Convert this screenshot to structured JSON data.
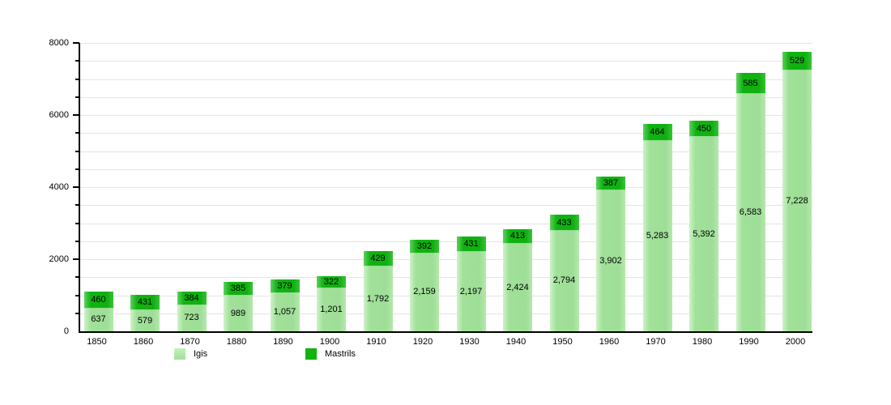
{
  "chart_data": {
    "type": "bar",
    "stacked": true,
    "title": "",
    "categories": [
      "1850",
      "1860",
      "1870",
      "1880",
      "1890",
      "1900",
      "1910",
      "1920",
      "1930",
      "1940",
      "1950",
      "1960",
      "1970",
      "1980",
      "1990",
      "2000"
    ],
    "series": [
      {
        "name": "Igis",
        "color": "#a0e099",
        "values": [
          637,
          579,
          723,
          989,
          1057,
          1201,
          1792,
          2159,
          2197,
          2424,
          2794,
          3902,
          5283,
          5392,
          6583,
          7228
        ]
      },
      {
        "name": "Mastrils",
        "color": "#10b310",
        "values": [
          460,
          431,
          384,
          385,
          379,
          322,
          429,
          392,
          431,
          413,
          433,
          387,
          464,
          450,
          585,
          529
        ]
      }
    ],
    "value_labels_formatted": {
      "Igis": [
        "637",
        "579",
        "723",
        "989",
        "1,057",
        "1,201",
        "1,792",
        "2,159",
        "2,197",
        "2,424",
        "2,794",
        "3,902",
        "5,283",
        "5,392",
        "6,583",
        "7,228"
      ],
      "Mastrils": [
        "460",
        "431",
        "384",
        "385",
        "379",
        "322",
        "429",
        "392",
        "431",
        "413",
        "433",
        "387",
        "464",
        "450",
        "585",
        "529"
      ]
    },
    "ylim": [
      0,
      8000
    ],
    "ytick_labels": [
      "0",
      "2000",
      "4000",
      "6000",
      "8000"
    ],
    "ytick_major_increment": 2000,
    "ytick_minor_increment": 500,
    "grid": true,
    "legend_position": "bottom",
    "colors": {
      "igis_light_green": "#a0e099",
      "mastrils_dark_green": "#10b310",
      "gridline": "#e4e4e4",
      "axis": "#000000",
      "label_text": "#000000"
    }
  },
  "legend": {
    "igis_label": "Igis",
    "mastrils_label": "Mastrils"
  }
}
